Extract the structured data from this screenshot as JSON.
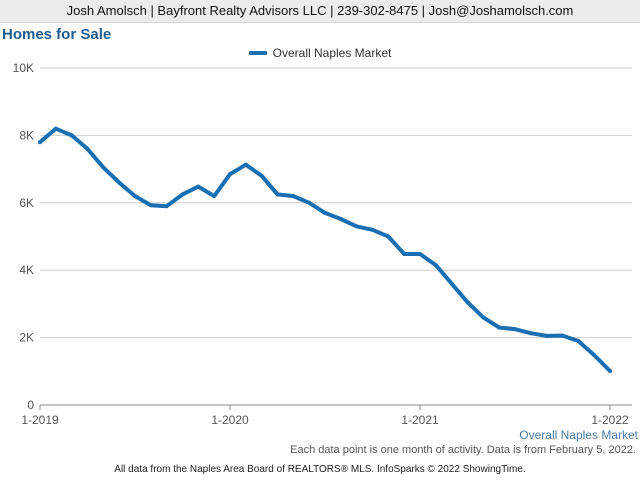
{
  "header": {
    "text": "Josh Amolsch | Bayfront Realty Advisors LLC | 239-302-8475 | Josh@Joshamolsch.com"
  },
  "note": "Each data point is one month of activity. Data is from February 5, 2022.",
  "footer": "All data from the Naples Area Board of REALTORS® MLS. InfoSparks © 2022 ShowingTime.",
  "chart_data": {
    "type": "line",
    "title": "Homes for Sale",
    "xlabel": "",
    "ylabel": "",
    "x_tick_labels": [
      "1-2019",
      "1-2020",
      "1-2021",
      "1-2022"
    ],
    "y_tick_labels": [
      "0",
      "2K",
      "4K",
      "6K",
      "8K",
      "10K"
    ],
    "y_ticks": [
      0,
      2000,
      4000,
      6000,
      8000,
      10000
    ],
    "ylim": [
      0,
      10000
    ],
    "grid": true,
    "legend": "top-center",
    "series_tag": "Overall Naples Market",
    "x": [
      "1-2019",
      "2-2019",
      "3-2019",
      "4-2019",
      "5-2019",
      "6-2019",
      "7-2019",
      "8-2019",
      "9-2019",
      "10-2019",
      "11-2019",
      "12-2019",
      "1-2020",
      "2-2020",
      "3-2020",
      "4-2020",
      "5-2020",
      "6-2020",
      "7-2020",
      "8-2020",
      "9-2020",
      "10-2020",
      "11-2020",
      "12-2020",
      "1-2021",
      "2-2021",
      "3-2021",
      "4-2021",
      "5-2021",
      "6-2021",
      "7-2021",
      "8-2021",
      "9-2021",
      "10-2021",
      "11-2021",
      "12-2021",
      "1-2022"
    ],
    "series": [
      {
        "name": "Overall Naples Market",
        "color": "#1a6fb3",
        "values": [
          7800,
          8200,
          8000,
          7600,
          7050,
          6600,
          6200,
          5930,
          5900,
          6250,
          6480,
          6200,
          6850,
          7130,
          6800,
          6250,
          6200,
          6000,
          5700,
          5520,
          5300,
          5200,
          5000,
          4480,
          4480,
          4150,
          3600,
          3050,
          2600,
          2300,
          2250,
          2130,
          2050,
          2060,
          1900,
          1480,
          1010
        ]
      }
    ]
  }
}
